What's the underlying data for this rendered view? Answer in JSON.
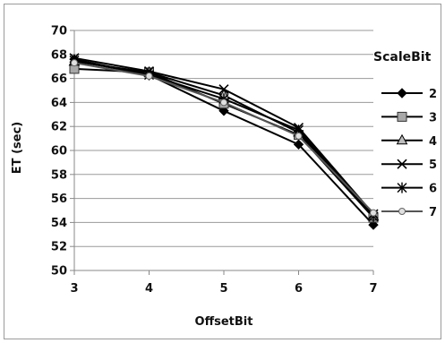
{
  "chart_data": {
    "type": "line",
    "title": "",
    "xlabel": "OffsetBit",
    "ylabel": "ET (sec)",
    "x": [
      3,
      4,
      5,
      6,
      7
    ],
    "ylim": [
      50,
      70
    ],
    "yticks": [
      50,
      52,
      54,
      56,
      58,
      60,
      62,
      64,
      66,
      68,
      70
    ],
    "grid": "horizontal",
    "legend": {
      "title": "ScaleBit",
      "placement": "right"
    },
    "series": [
      {
        "name": "2",
        "marker": "diamond-filled",
        "color": "#000000",
        "values": [
          67.6,
          66.3,
          63.3,
          60.5,
          53.8
        ]
      },
      {
        "name": "3",
        "marker": "square-gray",
        "color": "#000000",
        "values": [
          66.8,
          66.5,
          63.9,
          61.3,
          54.4
        ]
      },
      {
        "name": "4",
        "marker": "triangle-gray",
        "color": "#000000",
        "values": [
          67.4,
          66.5,
          64.6,
          61.5,
          54.5
        ]
      },
      {
        "name": "5",
        "marker": "x",
        "color": "#000000",
        "values": [
          67.7,
          66.6,
          65.1,
          61.9,
          54.7
        ]
      },
      {
        "name": "6",
        "marker": "asterisk",
        "color": "#000000",
        "values": [
          67.5,
          66.3,
          64.3,
          61.7,
          54.5
        ]
      },
      {
        "name": "7",
        "marker": "circle-light",
        "color": "#555555",
        "values": [
          67.3,
          66.2,
          64.0,
          61.2,
          54.8
        ]
      }
    ]
  }
}
